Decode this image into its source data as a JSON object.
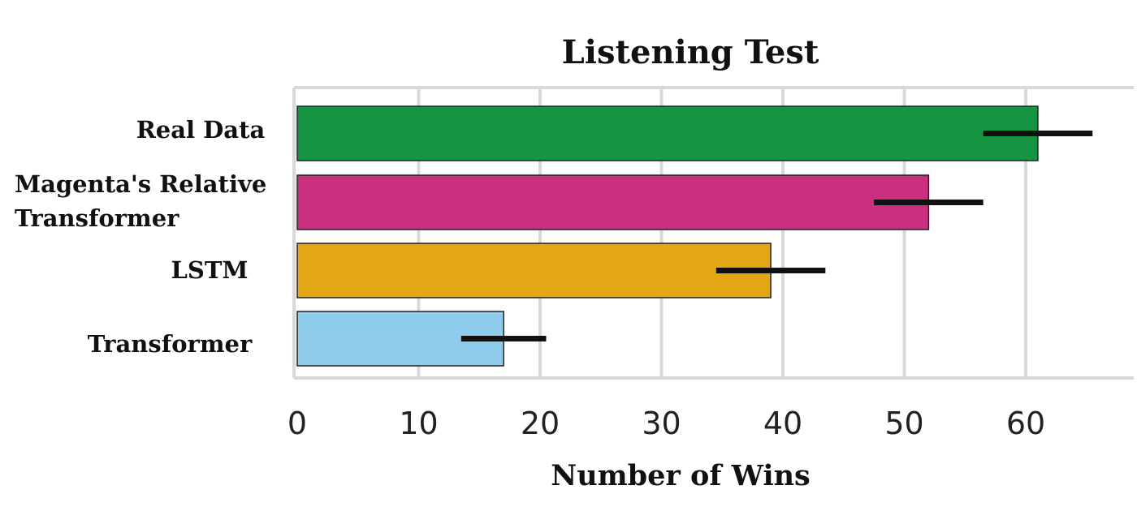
{
  "chart_data": {
    "type": "bar",
    "orientation": "horizontal",
    "title": "Listening Test",
    "xlabel": "Number of Wins",
    "ylabel": "",
    "xlim": [
      0,
      68
    ],
    "xticks": [
      0,
      10,
      20,
      30,
      40,
      50,
      60
    ],
    "grid": true,
    "legend": "none",
    "categories": [
      [
        "Real Data"
      ],
      [
        "Magenta's Relative",
        "Transformer"
      ],
      [
        "LSTM"
      ],
      [
        "Transformer"
      ]
    ],
    "values": [
      61,
      52,
      39,
      17
    ],
    "error_low": [
      56.5,
      47.5,
      34.5,
      13.5
    ],
    "error_high": [
      65.5,
      56.5,
      43.5,
      20.5
    ],
    "colors": [
      "#169441",
      "#cc2f80",
      "#e4a714",
      "#8ecbec"
    ]
  }
}
